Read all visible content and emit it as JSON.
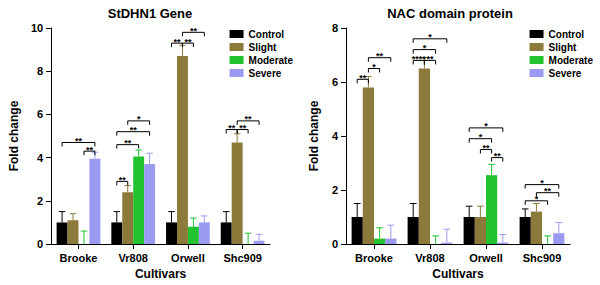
{
  "chart_data": [
    {
      "type": "bar",
      "title": "StDHN1 Gene",
      "x_label": "Cultivars",
      "y_label": "Fold change",
      "categories": [
        "Brooke",
        "Vr808",
        "Orwell",
        "Shc909"
      ],
      "series": [
        {
          "name": "Control",
          "color": "#000000",
          "values": [
            1.0,
            1.0,
            1.0,
            1.0
          ],
          "errors": [
            0.5,
            0.5,
            0.5,
            0.5
          ]
        },
        {
          "name": "Slight",
          "color": "#8b7a3a",
          "values": [
            1.1,
            2.4,
            8.7,
            4.7
          ],
          "errors": [
            0.3,
            0.3,
            0.5,
            0.4
          ]
        },
        {
          "name": "Moderate",
          "color": "#22c32e",
          "values": [
            0,
            4.05,
            0.8,
            0
          ],
          "errors": [
            0.6,
            0.3,
            0.4,
            0.5
          ]
        },
        {
          "name": "Severe",
          "color": "#9a9af0",
          "values": [
            3.95,
            3.7,
            1.0,
            0.15
          ],
          "errors": [
            0.3,
            0.5,
            0.3,
            0.3
          ]
        }
      ],
      "significance": [
        {
          "category": "Brooke",
          "from": "Control",
          "to": "Severe",
          "y": 4.7,
          "label": "**"
        },
        {
          "category": "Brooke",
          "from": "Moderate",
          "to": "Severe",
          "y": 4.3,
          "label": "**"
        },
        {
          "category": "Vr808",
          "from": "Control",
          "to": "Slight",
          "y": 2.9,
          "label": "**"
        },
        {
          "category": "Vr808",
          "from": "Control",
          "to": "Moderate",
          "y": 4.6,
          "label": "**"
        },
        {
          "category": "Vr808",
          "from": "Control",
          "to": "Severe",
          "y": 5.2,
          "label": "**"
        },
        {
          "category": "Vr808",
          "from": "Slight",
          "to": "Severe",
          "y": 5.7,
          "label": "*"
        },
        {
          "category": "Orwell",
          "from": "Control",
          "to": "Slight",
          "y": 9.3,
          "label": "**"
        },
        {
          "category": "Orwell",
          "from": "Slight",
          "to": "Moderate",
          "y": 9.3,
          "label": "**"
        },
        {
          "category": "Orwell",
          "from": "Slight",
          "to": "Severe",
          "y": 9.8,
          "label": "**"
        },
        {
          "category": "Shc909",
          "from": "Control",
          "to": "Slight",
          "y": 5.3,
          "label": "**"
        },
        {
          "category": "Shc909",
          "from": "Slight",
          "to": "Moderate",
          "y": 5.3,
          "label": "**"
        },
        {
          "category": "Shc909",
          "from": "Slight",
          "to": "Severe",
          "y": 5.7,
          "label": "**"
        }
      ],
      "ylim": [
        0,
        10
      ],
      "yticks": [
        0,
        2,
        4,
        6,
        8,
        10
      ],
      "grid": false,
      "legend": "upper right"
    },
    {
      "type": "bar",
      "title": "NAC domain protein",
      "x_label": "Cultivars",
      "y_label": "Fold change",
      "categories": [
        "Brooke",
        "Vr808",
        "Orwell",
        "Shc909"
      ],
      "series": [
        {
          "name": "Control",
          "color": "#000000",
          "values": [
            1.0,
            1.0,
            1.0,
            1.0
          ],
          "errors": [
            0.5,
            0.5,
            0.4,
            0.3
          ]
        },
        {
          "name": "Slight",
          "color": "#8b7a3a",
          "values": [
            5.8,
            6.5,
            1.0,
            1.2
          ],
          "errors": [
            0.4,
            0.4,
            0.4,
            0.3
          ]
        },
        {
          "name": "Moderate",
          "color": "#22c32e",
          "values": [
            0.2,
            0,
            2.55,
            0
          ],
          "errors": [
            0.4,
            0.3,
            0.4,
            0.3
          ]
        },
        {
          "name": "Severe",
          "color": "#9a9af0",
          "values": [
            0.2,
            0.05,
            0.05,
            0.4
          ],
          "errors": [
            0.5,
            0.5,
            0.3,
            0.4
          ]
        }
      ],
      "significance": [
        {
          "category": "Brooke",
          "from": "Control",
          "to": "Slight",
          "y": 6.1,
          "label": "**"
        },
        {
          "category": "Brooke",
          "from": "Slight",
          "to": "Moderate",
          "y": 6.5,
          "label": "*"
        },
        {
          "category": "Brooke",
          "from": "Slight",
          "to": "Severe",
          "y": 6.9,
          "label": "**"
        },
        {
          "category": "Vr808",
          "from": "Control",
          "to": "Slight",
          "y": 6.8,
          "label": "****"
        },
        {
          "category": "Vr808",
          "from": "Slight",
          "to": "Moderate",
          "y": 6.8,
          "label": "**"
        },
        {
          "category": "Vr808",
          "from": "Control",
          "to": "Moderate",
          "y": 7.2,
          "label": "*"
        },
        {
          "category": "Vr808",
          "from": "Control",
          "to": "Severe",
          "y": 7.6,
          "label": "*"
        },
        {
          "category": "Orwell",
          "from": "Moderate",
          "to": "Severe",
          "y": 3.2,
          "label": "**"
        },
        {
          "category": "Orwell",
          "from": "Slight",
          "to": "Moderate",
          "y": 3.5,
          "label": "**"
        },
        {
          "category": "Orwell",
          "from": "Control",
          "to": "Moderate",
          "y": 3.9,
          "label": "*"
        },
        {
          "category": "Orwell",
          "from": "Control",
          "to": "Severe",
          "y": 4.3,
          "label": "*"
        },
        {
          "category": "Shc909",
          "from": "Control",
          "to": "Moderate",
          "y": 1.6,
          "label": "*"
        },
        {
          "category": "Shc909",
          "from": "Slight",
          "to": "Severe",
          "y": 1.9,
          "label": "**"
        },
        {
          "category": "Shc909",
          "from": "Control",
          "to": "Severe",
          "y": 2.2,
          "label": "*"
        }
      ],
      "ylim": [
        0,
        8
      ],
      "yticks": [
        0,
        2,
        4,
        6,
        8
      ],
      "grid": false,
      "legend": "upper right"
    }
  ]
}
